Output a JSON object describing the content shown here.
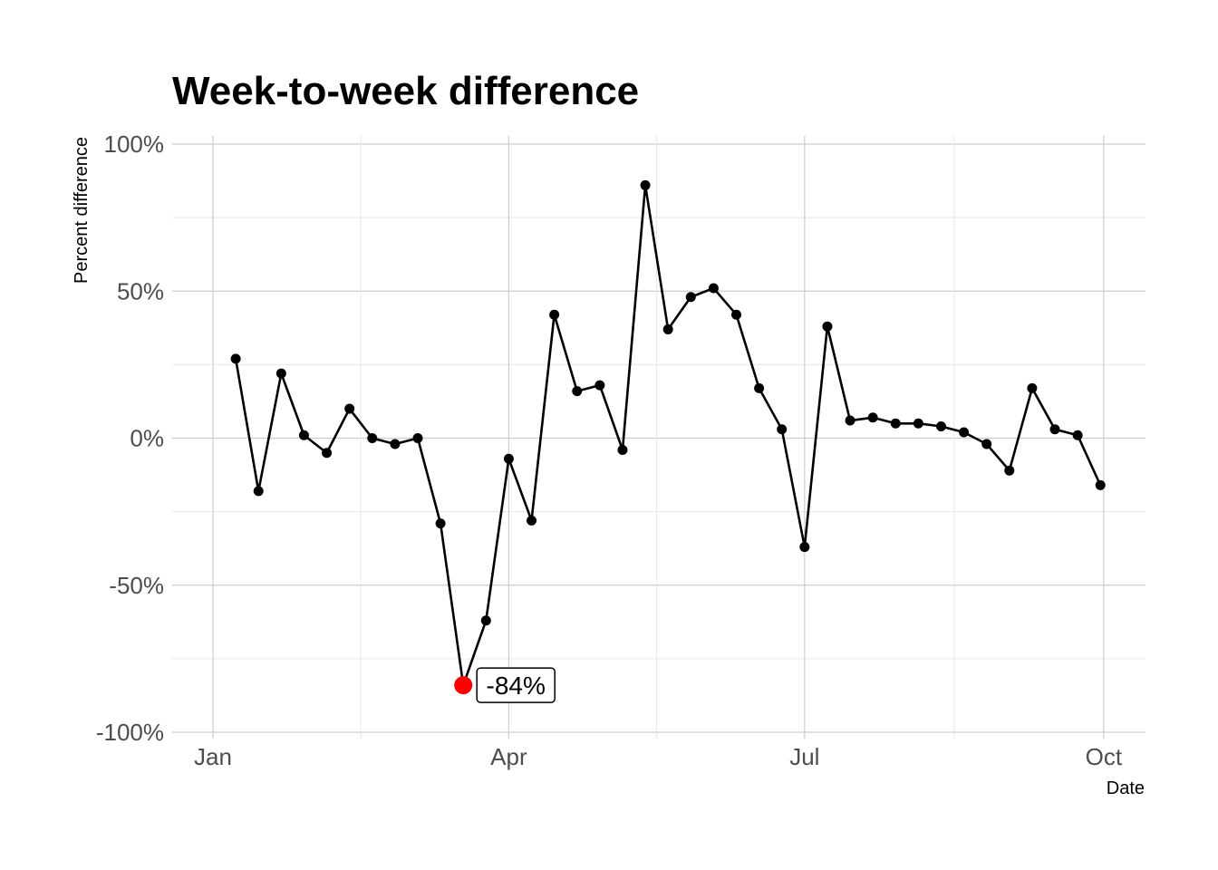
{
  "chart_data": {
    "type": "line",
    "title": "Week-to-week difference",
    "xlabel": "Date",
    "ylabel": "Percent difference",
    "ylim": [
      -100,
      100
    ],
    "xlim": [
      "2020-01-01",
      "2020-10-03"
    ],
    "x_ticks": [
      {
        "label": "Jan",
        "date": "2020-01-01"
      },
      {
        "label": "Apr",
        "date": "2020-04-01"
      },
      {
        "label": "Jul",
        "date": "2020-07-01"
      },
      {
        "label": "Oct",
        "date": "2020-10-01"
      }
    ],
    "y_ticks": [
      {
        "label": "-100%",
        "value": -100
      },
      {
        "label": "-50%",
        "value": -50
      },
      {
        "label": "0%",
        "value": 0
      },
      {
        "label": "50%",
        "value": 50
      },
      {
        "label": "100%",
        "value": 100
      }
    ],
    "grid": true,
    "series": [
      {
        "x": [
          "2020-01-08",
          "2020-01-15",
          "2020-01-22",
          "2020-01-29",
          "2020-02-05",
          "2020-02-12",
          "2020-02-19",
          "2020-02-26",
          "2020-03-04",
          "2020-03-11",
          "2020-03-18",
          "2020-03-25",
          "2020-04-01",
          "2020-04-08",
          "2020-04-15",
          "2020-04-22",
          "2020-04-29",
          "2020-05-06",
          "2020-05-13",
          "2020-05-20",
          "2020-05-27",
          "2020-06-03",
          "2020-06-10",
          "2020-06-17",
          "2020-06-24",
          "2020-07-01",
          "2020-07-08",
          "2020-07-15",
          "2020-07-22",
          "2020-07-29",
          "2020-08-05",
          "2020-08-12",
          "2020-08-19",
          "2020-08-26",
          "2020-09-02",
          "2020-09-09",
          "2020-09-16",
          "2020-09-23",
          "2020-09-30"
        ],
        "y": [
          27,
          -18,
          22,
          1,
          -5,
          10,
          0,
          -2,
          0,
          -29,
          -84,
          -62,
          -7,
          -28,
          42,
          16,
          18,
          -4,
          86,
          37,
          48,
          51,
          42,
          17,
          3,
          -37,
          38,
          6,
          7,
          5,
          5,
          4,
          2,
          -2,
          -11,
          17,
          3,
          1,
          -16
        ],
        "color": "#000000"
      }
    ],
    "highlight": {
      "x": "2020-03-18",
      "y": -84,
      "label": "-84%",
      "color": "#ff0000"
    }
  }
}
